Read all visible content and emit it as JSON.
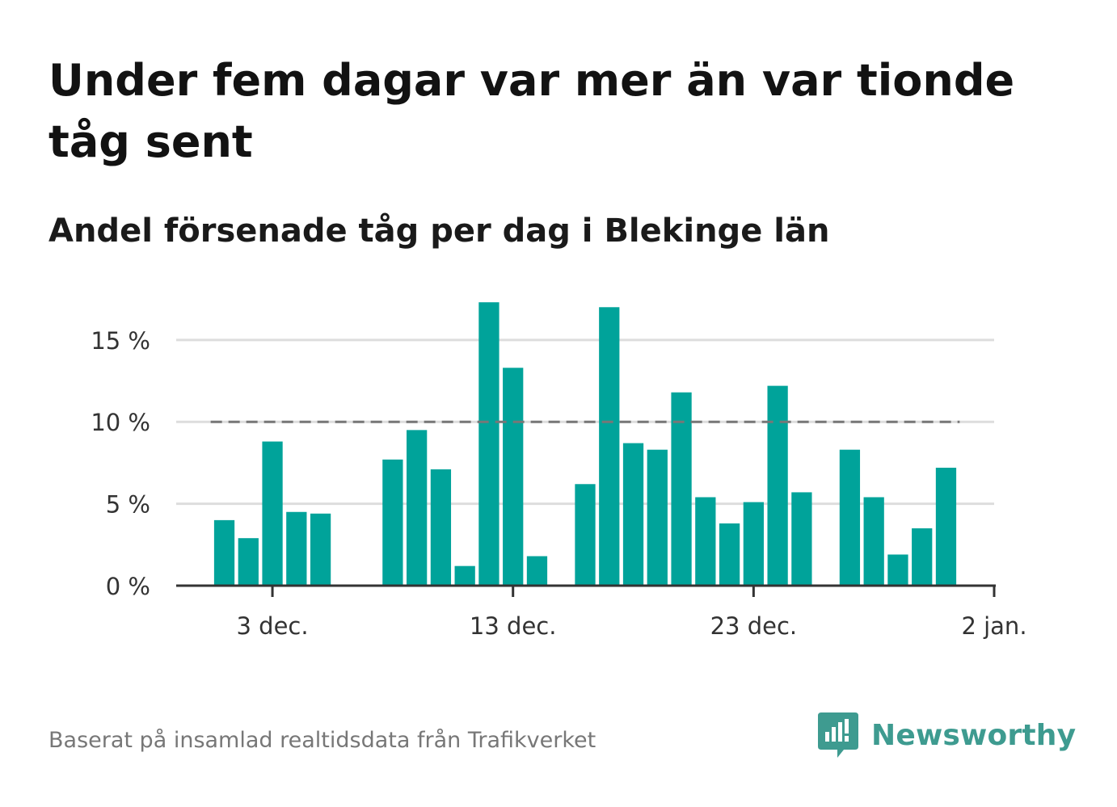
{
  "title": "Under fem dagar var mer än var tionde tåg sent",
  "subtitle": "Andel försenade tåg per dag i Blekinge län",
  "footer": "Baserat på insamlad realtidsdata från Trafikverket",
  "brand": {
    "name": "Newsworthy",
    "icon": "newsworthy-logo-icon",
    "color": "#3e9b90"
  },
  "chart_data": {
    "type": "bar",
    "title": "Andel försenade tåg per dag i Blekinge län",
    "xlabel": "",
    "ylabel": "",
    "y_unit": "%",
    "ylim": [
      0,
      18
    ],
    "yticks": [
      0,
      5,
      10,
      15
    ],
    "ytick_labels": [
      "0 %",
      "5 %",
      "10 %",
      "15 %"
    ],
    "xlim": [
      "2023-11-29",
      "2024-01-02"
    ],
    "xticks": [
      "2023-12-03",
      "2023-12-13",
      "2023-12-23",
      "2024-01-02"
    ],
    "xtick_labels": [
      "3 dec.",
      "13 dec.",
      "23 dec.",
      "2 jan."
    ],
    "grid": true,
    "bar_color": "#00a39a",
    "reference_line": {
      "value": 10,
      "style": "dashed",
      "color": "#777777"
    },
    "categories": [
      "2023-12-01",
      "2023-12-02",
      "2023-12-03",
      "2023-12-04",
      "2023-12-05",
      "2023-12-08",
      "2023-12-09",
      "2023-12-10",
      "2023-12-11",
      "2023-12-12",
      "2023-12-13",
      "2023-12-14",
      "2023-12-16",
      "2023-12-17",
      "2023-12-18",
      "2023-12-19",
      "2023-12-20",
      "2023-12-21",
      "2023-12-22",
      "2023-12-23",
      "2023-12-24",
      "2023-12-25",
      "2023-12-27",
      "2023-12-28",
      "2023-12-29",
      "2023-12-30",
      "2023-12-31"
    ],
    "values": [
      4.0,
      2.9,
      8.8,
      4.5,
      4.4,
      7.7,
      9.5,
      7.1,
      1.2,
      17.3,
      13.3,
      1.8,
      6.2,
      17.0,
      8.7,
      8.3,
      11.8,
      5.4,
      3.8,
      5.1,
      12.2,
      5.7,
      8.3,
      5.4,
      1.9,
      3.5,
      7.2
    ]
  }
}
